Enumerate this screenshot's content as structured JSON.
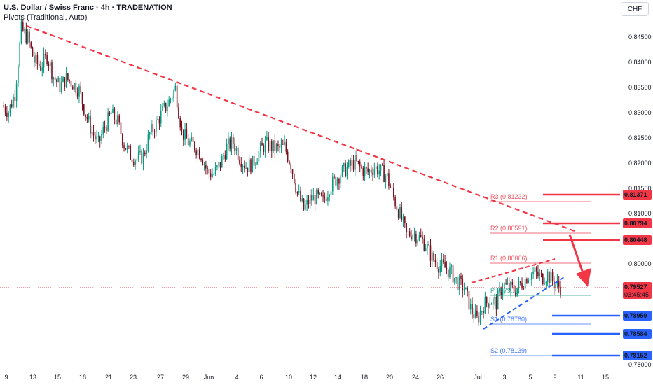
{
  "header": {
    "title": "U.S. Dollar / Swiss Franc · 4h · TRADENATION",
    "indicator": "Pivots (Traditional, Auto)"
  },
  "currency_button": "CHF",
  "chart_data": {
    "type": "candlestick",
    "symbol": "USDCHF",
    "timeframe": "4h",
    "y_ticks": [
      0.845,
      0.84,
      0.835,
      0.83,
      0.825,
      0.82,
      0.815,
      0.81,
      0.8,
      0.78
    ],
    "y_tick_labels": [
      "0.84500",
      "0.84000",
      "0.83500",
      "0.83000",
      "0.82500",
      "0.82000",
      "0.81500",
      "0.81000",
      "0.80000",
      "0.78000"
    ],
    "x_tick_labels": [
      "9",
      "13",
      "15",
      "18",
      "21",
      "23",
      "27",
      "29",
      "Jun",
      "4",
      "6",
      "10",
      "12",
      "14",
      "18",
      "20",
      "24",
      "26",
      "Jul",
      "3",
      "5",
      "9",
      "11",
      "15"
    ],
    "close_series": [
      0.8315,
      0.8302,
      0.8338,
      0.8465,
      0.8448,
      0.8402,
      0.8392,
      0.8412,
      0.8372,
      0.8352,
      0.8368,
      0.8358,
      0.8345,
      0.8298,
      0.8262,
      0.8238,
      0.8272,
      0.8298,
      0.8282,
      0.8238,
      0.8215,
      0.8208,
      0.8214,
      0.8258,
      0.8278,
      0.8302,
      0.8322,
      0.8348,
      0.8262,
      0.8242,
      0.8234,
      0.8218,
      0.8182,
      0.8178,
      0.8198,
      0.8232,
      0.8242,
      0.8212,
      0.8194,
      0.8198,
      0.8222,
      0.8238,
      0.8232,
      0.8228,
      0.8232,
      0.8198,
      0.8142,
      0.8108,
      0.8128,
      0.8132,
      0.8124,
      0.8152,
      0.8168,
      0.8182,
      0.8192,
      0.8202,
      0.8188,
      0.8182,
      0.8192,
      0.8184,
      0.8172,
      0.8132,
      0.8098,
      0.8058,
      0.8062,
      0.8052,
      0.8038,
      0.8012,
      0.7998,
      0.7992,
      0.7982,
      0.7962,
      0.7952,
      0.7912,
      0.7888,
      0.7918,
      0.7928,
      0.7922,
      0.7958,
      0.7952,
      0.7948,
      0.7962,
      0.7978,
      0.7982,
      0.7972,
      0.7978,
      0.7962,
      0.7953
    ],
    "last_price": "0.79527",
    "countdown": "03:45:45",
    "pivot_levels": [
      {
        "name": "R3",
        "text": "R3 (0.81232)",
        "value": 0.81232
      },
      {
        "name": "R2",
        "text": "R2 (0.80591)",
        "value": 0.80591
      },
      {
        "name": "R1",
        "text": "R1 (0.80006)",
        "value": 0.80006
      },
      {
        "name": "P",
        "text": "P (0.79...)",
        "value": 0.7942
      },
      {
        "name": "S1",
        "text": "S1 (0.78780)",
        "value": 0.7878
      },
      {
        "name": "S2",
        "text": "S2 (0.78139)",
        "value": 0.78139
      }
    ],
    "resistance_labels": [
      "0.81371",
      "0.80794",
      "0.80448"
    ],
    "support_labels": [
      "0.78959",
      "0.78584",
      "0.78152"
    ],
    "colors": {
      "up": "#089981",
      "down": "#7a0f1e",
      "resistance": "#f23645",
      "support": "#2962ff",
      "trend_down": "#f23645",
      "trend_up": "#2962ff"
    }
  }
}
